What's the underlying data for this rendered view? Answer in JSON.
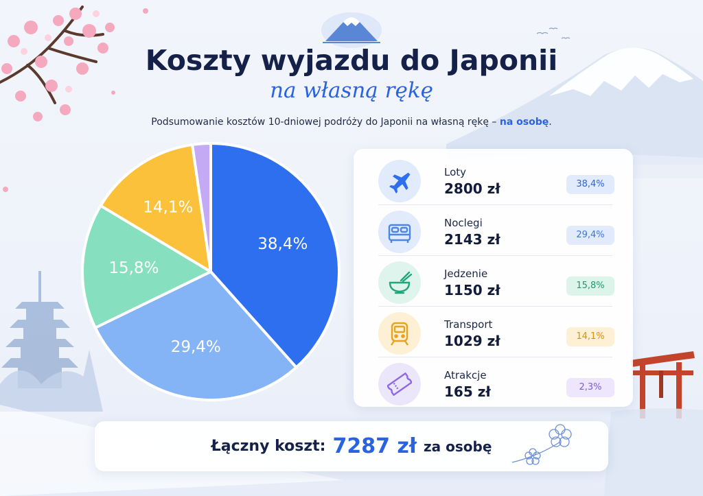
{
  "header": {
    "title": "Koszty wyjazdu do Japonii",
    "subtitle": "na własną rękę",
    "description_main": "Podsumowanie kosztów 10-dniowej podróży do Japonii na własną rękę – ",
    "description_highlight": "na osobę",
    "description_end": "."
  },
  "chart_data": {
    "type": "pie",
    "categories": [
      "Loty",
      "Noclegi",
      "Jedzenie",
      "Transport",
      "Atrakcje"
    ],
    "values": [
      38.4,
      29.4,
      15.8,
      14.1,
      2.3
    ],
    "labels": [
      "38,4%",
      "29,4%",
      "15,8%",
      "14,1%",
      "2,3%"
    ],
    "colors": [
      "#2e6ff0",
      "#84b4f5",
      "#86e0bf",
      "#fbc13a",
      "#c4aaf4"
    ],
    "label_colors": [
      "#ffffff",
      "#ffffff",
      "#ffffff",
      "#ffffff",
      "#8e68e6"
    ]
  },
  "legend": {
    "items": [
      {
        "name": "Loty",
        "amount": "2800 zł",
        "percent": "38,4%",
        "icon": "airplane-icon",
        "color": "#2e6ff0",
        "bg": "#e2ebfb",
        "badge_bg": "#e1ebfc",
        "badge_fg": "#2a63e0"
      },
      {
        "name": "Noclegi",
        "amount": "2143 zł",
        "percent": "29,4%",
        "icon": "bed-icon",
        "color": "#4a86e8",
        "bg": "#e2ebfb",
        "badge_bg": "#e1ebfc",
        "badge_fg": "#3d74d8"
      },
      {
        "name": "Jedzenie",
        "amount": "1150 zł",
        "percent": "15,8%",
        "icon": "rice-bowl-icon",
        "color": "#1fa67a",
        "bg": "#dff4ec",
        "badge_bg": "#dcf4ea",
        "badge_fg": "#1d9a70"
      },
      {
        "name": "Transport",
        "amount": "1029 zł",
        "percent": "14,1%",
        "icon": "train-icon",
        "color": "#e8a21c",
        "bg": "#fdf0d4",
        "badge_bg": "#fdf0d4",
        "badge_fg": "#d7901a"
      },
      {
        "name": "Atrakcje",
        "amount": "165 zł",
        "percent": "2,3%",
        "icon": "ticket-icon",
        "color": "#8e68e6",
        "bg": "#ece6fb",
        "badge_bg": "#ede6fc",
        "badge_fg": "#7d5ad8"
      }
    ]
  },
  "total": {
    "label": "Łączny koszt:",
    "value": "7287 zł",
    "suffix": "za osobę"
  }
}
